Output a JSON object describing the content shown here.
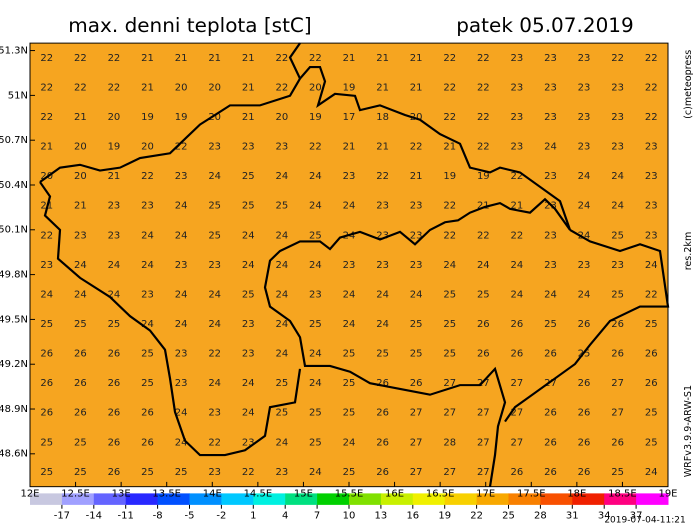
{
  "title": "max. denni teplota [stC]",
  "date": "patek 05.07.2019",
  "copyright": "(c)meteopress",
  "resolution": "res.2km",
  "model": "WRFv3.9.9-ARW-S1",
  "timestamp": "2019-07-04-11:21",
  "map": {
    "xlim": [
      12,
      19
    ],
    "ylim": [
      48.38,
      51.35
    ],
    "xticks": [
      {
        "value": 12,
        "label": "12E"
      },
      {
        "value": 12.5,
        "label": "12.5E"
      },
      {
        "value": 13,
        "label": "13E"
      },
      {
        "value": 13.5,
        "label": "13.5E"
      },
      {
        "value": 14,
        "label": "14E"
      },
      {
        "value": 14.5,
        "label": "14.5E"
      },
      {
        "value": 15,
        "label": "15E"
      },
      {
        "value": 15.5,
        "label": "15.5E"
      },
      {
        "value": 16,
        "label": "16E"
      },
      {
        "value": 16.5,
        "label": "16.5E"
      },
      {
        "value": 17,
        "label": "17E"
      },
      {
        "value": 17.5,
        "label": "17.5E"
      },
      {
        "value": 18,
        "label": "18E"
      },
      {
        "value": 18.5,
        "label": "18.5E"
      },
      {
        "value": 19,
        "label": "19E"
      }
    ],
    "yticks": [
      {
        "value": 51.3,
        "label": "51.3N"
      },
      {
        "value": 51,
        "label": "51N"
      },
      {
        "value": 50.7,
        "label": "50.7N"
      },
      {
        "value": 50.4,
        "label": "50.4N"
      },
      {
        "value": 50.1,
        "label": "50.1N"
      },
      {
        "value": 49.8,
        "label": "49.8N"
      },
      {
        "value": 49.5,
        "label": "49.5N"
      },
      {
        "value": 49.2,
        "label": "49.2N"
      },
      {
        "value": 48.9,
        "label": "48.9N"
      },
      {
        "value": 48.6,
        "label": "48.6N"
      }
    ],
    "background": "#f6a520",
    "values": [
      [
        22,
        22,
        22,
        21,
        21,
        21,
        21,
        22,
        22,
        21,
        21,
        21,
        22,
        22,
        23,
        23,
        23,
        22,
        22
      ],
      [
        22,
        22,
        22,
        21,
        20,
        20,
        21,
        22,
        20,
        19,
        21,
        21,
        22,
        22,
        23,
        23,
        23,
        23,
        22
      ],
      [
        22,
        21,
        20,
        19,
        19,
        20,
        21,
        20,
        19,
        17,
        18,
        20,
        22,
        22,
        23,
        23,
        23,
        23,
        22
      ],
      [
        21,
        20,
        19,
        20,
        22,
        23,
        23,
        23,
        22,
        21,
        21,
        22,
        21,
        22,
        23,
        24,
        23,
        23,
        23
      ],
      [
        20,
        20,
        21,
        22,
        23,
        24,
        25,
        24,
        24,
        23,
        22,
        21,
        19,
        19,
        22,
        23,
        24,
        24,
        23
      ],
      [
        21,
        21,
        23,
        23,
        24,
        25,
        25,
        25,
        24,
        24,
        23,
        23,
        22,
        21,
        21,
        23,
        24,
        24,
        23
      ],
      [
        22,
        23,
        23,
        24,
        24,
        25,
        24,
        24,
        25,
        24,
        23,
        23,
        22,
        22,
        22,
        23,
        24,
        25,
        23
      ],
      [
        23,
        24,
        24,
        24,
        23,
        23,
        24,
        24,
        24,
        23,
        23,
        23,
        24,
        24,
        24,
        23,
        23,
        23,
        24
      ],
      [
        24,
        24,
        24,
        23,
        24,
        24,
        25,
        24,
        23,
        24,
        24,
        24,
        25,
        25,
        24,
        24,
        24,
        25,
        22
      ],
      [
        25,
        25,
        25,
        24,
        24,
        24,
        23,
        24,
        25,
        24,
        24,
        25,
        25,
        26,
        26,
        25,
        26,
        26,
        25
      ],
      [
        26,
        26,
        26,
        25,
        23,
        22,
        23,
        24,
        24,
        25,
        25,
        25,
        25,
        26,
        26,
        26,
        25,
        26,
        26
      ],
      [
        26,
        26,
        26,
        25,
        23,
        24,
        24,
        25,
        24,
        25,
        26,
        26,
        27,
        27,
        27,
        27,
        26,
        27,
        26
      ],
      [
        26,
        26,
        26,
        26,
        24,
        23,
        24,
        25,
        25,
        25,
        26,
        27,
        27,
        27,
        27,
        26,
        26,
        27,
        25
      ],
      [
        25,
        25,
        26,
        26,
        24,
        22,
        23,
        24,
        25,
        24,
        26,
        27,
        28,
        27,
        27,
        26,
        26,
        26,
        25
      ],
      [
        25,
        25,
        26,
        25,
        25,
        23,
        22,
        23,
        24,
        25,
        26,
        27,
        27,
        27,
        26,
        26,
        26,
        25,
        24
      ]
    ]
  },
  "colorbar": {
    "ticks": [
      -17,
      -14,
      -11,
      -8,
      -5,
      -2,
      1,
      4,
      7,
      10,
      13,
      16,
      19,
      22,
      25,
      28,
      31,
      34,
      37
    ],
    "colors": [
      "#c8c8e0",
      "#a0a0ff",
      "#6464ff",
      "#2828ff",
      "#0050ff",
      "#0090ff",
      "#00c8ff",
      "#00f0e0",
      "#00e080",
      "#00d000",
      "#80e000",
      "#c8f000",
      "#f0f000",
      "#f8d000",
      "#f8a800",
      "#f88000",
      "#f85000",
      "#f02000",
      "#ff0080",
      "#ff00ff"
    ]
  }
}
